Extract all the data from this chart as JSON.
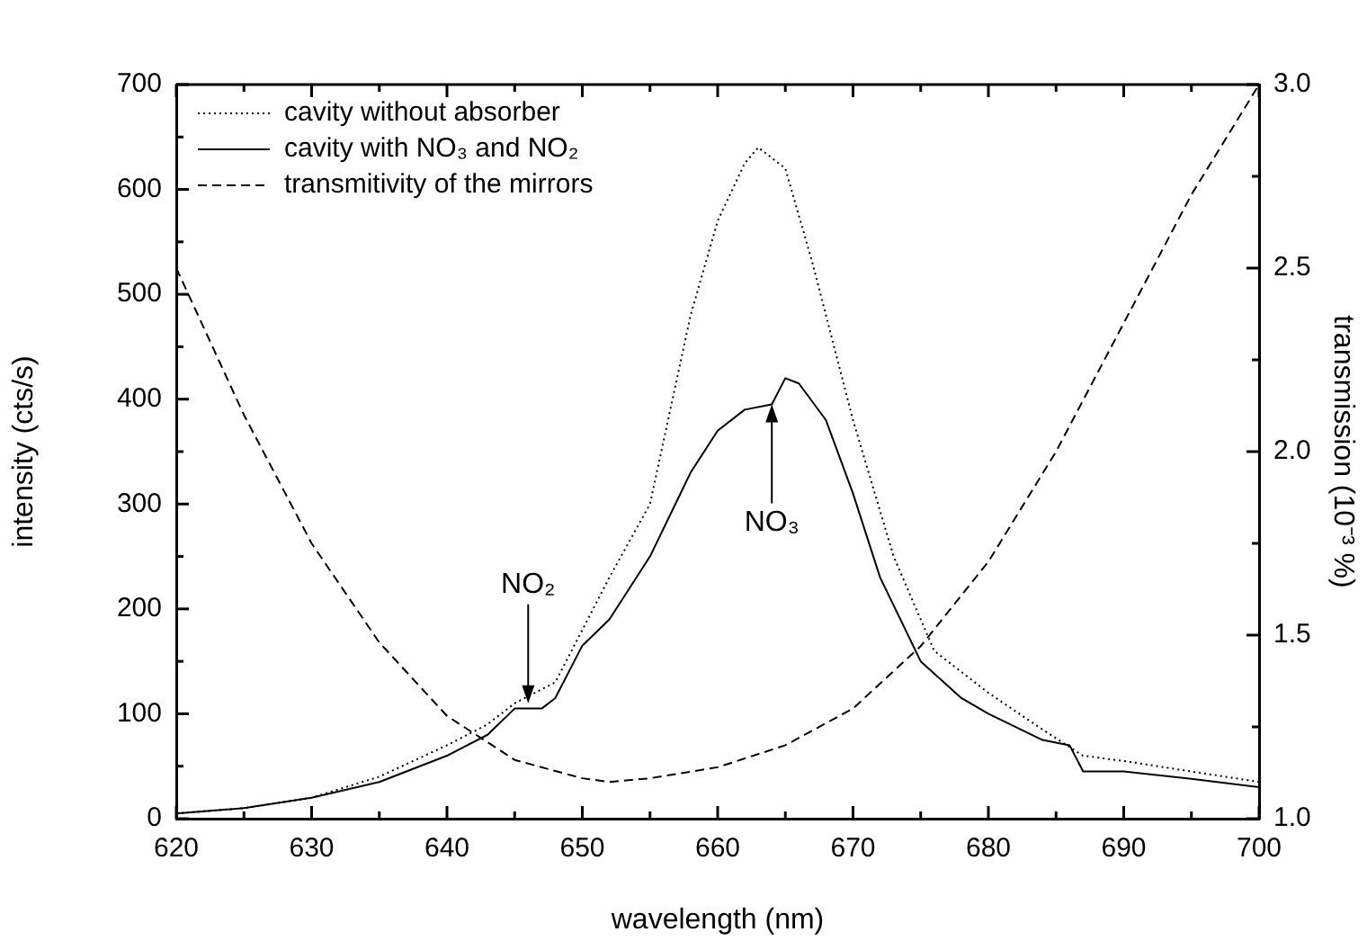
{
  "chart_data": {
    "type": "line",
    "xlabel": "wavelength (nm)",
    "ylabel": "intensity (cts/s)",
    "y2label": "transmission (10⁻³ %)",
    "xlim": [
      620,
      700
    ],
    "xticks": [
      620,
      630,
      640,
      650,
      660,
      670,
      680,
      690,
      700
    ],
    "ylim": [
      0,
      700
    ],
    "yticks": [
      0,
      100,
      200,
      300,
      400,
      500,
      600,
      700
    ],
    "y2lim": [
      1.0,
      3.0
    ],
    "y2ticks": [
      {
        "value": 1.0,
        "label": "1.0"
      },
      {
        "value": 1.5,
        "label": "1.5"
      },
      {
        "value": 2.0,
        "label": "2.0"
      },
      {
        "value": 2.5,
        "label": "2.5"
      },
      {
        "value": 3.0,
        "label": "3.0"
      }
    ],
    "grid": false,
    "legend": "top left",
    "marker": "none",
    "series": [
      {
        "name": "cavity without absorber",
        "color": "#000000",
        "line_style": "dotted",
        "x": [
          620,
          625,
          630,
          635,
          640,
          643,
          645,
          648,
          650,
          652,
          655,
          658,
          660,
          662,
          663,
          664,
          665,
          667,
          670,
          673,
          676,
          680,
          684,
          687,
          690,
          695,
          700
        ],
        "values": [
          5,
          10,
          20,
          40,
          70,
          90,
          110,
          130,
          180,
          230,
          300,
          480,
          570,
          625,
          640,
          630,
          620,
          530,
          380,
          250,
          160,
          120,
          85,
          60,
          55,
          45,
          35
        ]
      },
      {
        "name": "cavity with NO₃ and NO₂",
        "color": "#000000",
        "line_style": "solid",
        "x": [
          620,
          625,
          630,
          635,
          640,
          643,
          645,
          647,
          648,
          650,
          652,
          655,
          658,
          660,
          662,
          664,
          665,
          666,
          668,
          670,
          672,
          675,
          678,
          680,
          684,
          686,
          687,
          690,
          695,
          700
        ],
        "values": [
          5,
          10,
          20,
          35,
          60,
          80,
          105,
          105,
          115,
          165,
          190,
          250,
          330,
          370,
          390,
          395,
          420,
          415,
          380,
          310,
          230,
          150,
          115,
          100,
          75,
          70,
          45,
          45,
          38,
          30
        ]
      },
      {
        "name": "transmitivity of the mirrors",
        "color": "#000000",
        "line_style": "dashed",
        "axis": "y2",
        "x": [
          620,
          625,
          630,
          635,
          640,
          645,
          650,
          652,
          655,
          660,
          665,
          670,
          675,
          680,
          685,
          690,
          695,
          700
        ],
        "values": [
          2.5,
          2.1,
          1.75,
          1.48,
          1.28,
          1.16,
          1.11,
          1.1,
          1.11,
          1.14,
          1.2,
          1.3,
          1.47,
          1.7,
          2.0,
          2.35,
          2.7,
          3.0
        ]
      }
    ],
    "annotations": [
      {
        "text": "NO₂",
        "x": 646,
        "y": 110
      },
      {
        "text": "NO₃",
        "x": 664,
        "y": 395
      }
    ]
  }
}
